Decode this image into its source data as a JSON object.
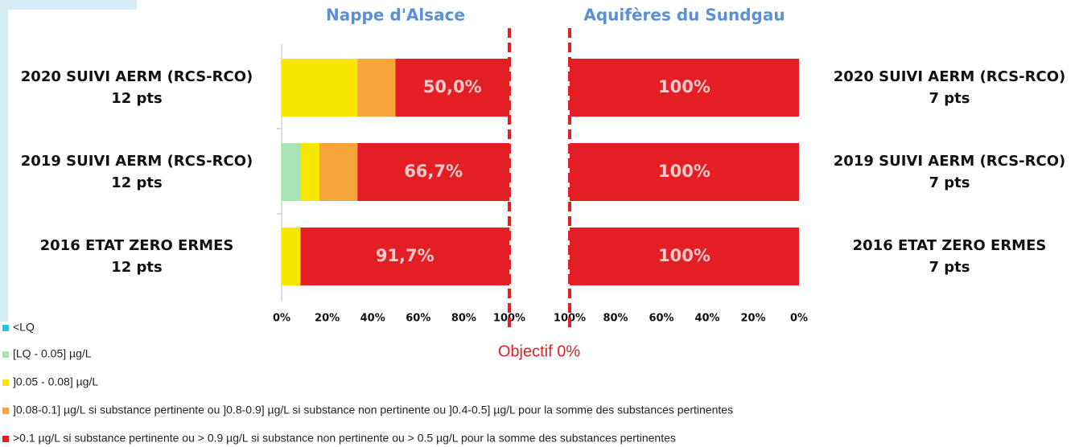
{
  "chart_data": [
    {
      "type": "bar",
      "orientation": "horizontal",
      "stacked": true,
      "title": "Nappe d'Alsace",
      "categories": [
        [
          "2020 SUIVI AERM (RCS-RCO)",
          "12 pts"
        ],
        [
          "2019 SUIVI AERM (RCS-RCO)",
          "12 pts"
        ],
        [
          "2016 ETAT ZERO ERMES",
          "12 pts"
        ]
      ],
      "label_side": "left",
      "series": [
        {
          "name": "<LQ",
          "color": "#26c6da",
          "values": [
            0,
            0,
            0
          ]
        },
        {
          "name": "[LQ - 0.05] µg/L",
          "color": "#a8e4b4",
          "values": [
            0,
            8.3,
            0
          ]
        },
        {
          "name": "]0.05 - 0.08] µg/L",
          "color": "#f7e600",
          "values": [
            33.3,
            8.3,
            8.3
          ]
        },
        {
          "name": "]0.08-0.1] µg/L si substance pertinente ou ]0.8-0.9] µg/L si substance non pertinente ou ]0.4-0.5] µg/L pour la somme des substances pertinentes",
          "color": "#f5a53c",
          "values": [
            16.7,
            16.7,
            0
          ]
        },
        {
          "name": ">0.1 µg/L si substance pertinente ou > 0.9 µg/L si substance non pertinente ou > 0.5 µg/L pour la somme des substances pertinentes",
          "color": "#e31e24",
          "values": [
            50.0,
            66.7,
            91.7
          ],
          "value_labels": [
            "50,0%",
            "66,7%",
            "91,7%"
          ]
        }
      ],
      "xlim": [
        0,
        100
      ],
      "xticks": [
        {
          "value": 0,
          "label": "0%"
        },
        {
          "value": 20,
          "label": "20%"
        },
        {
          "value": 40,
          "label": "40%"
        },
        {
          "value": 60,
          "label": "60%"
        },
        {
          "value": 80,
          "label": "80%"
        },
        {
          "value": 100,
          "label": "100%"
        }
      ],
      "reference_line": 100
    },
    {
      "type": "bar",
      "orientation": "horizontal",
      "stacked": true,
      "title": "Aquifères du Sundgau",
      "categories": [
        [
          "2020 SUIVI AERM (RCS-RCO)",
          "7 pts"
        ],
        [
          "2019 SUIVI AERM (RCS-RCO)",
          "7 pts"
        ],
        [
          "2016 ETAT ZERO ERMES",
          "7 pts"
        ]
      ],
      "label_side": "right",
      "series": [
        {
          "color": "#e31e24",
          "values": [
            100,
            100,
            100
          ],
          "value_labels": [
            "100%",
            "100%",
            "100%"
          ]
        }
      ],
      "xlim": [
        100,
        0
      ],
      "xticks": [
        {
          "value": 100,
          "label": "100%"
        },
        {
          "value": 80,
          "label": "80%"
        },
        {
          "value": 60,
          "label": "60%"
        },
        {
          "value": 40,
          "label": "40%"
        },
        {
          "value": 20,
          "label": "20%"
        },
        {
          "value": 0,
          "label": "0%"
        }
      ],
      "reference_line": 100
    }
  ],
  "annotation": "Objectif 0%"
}
